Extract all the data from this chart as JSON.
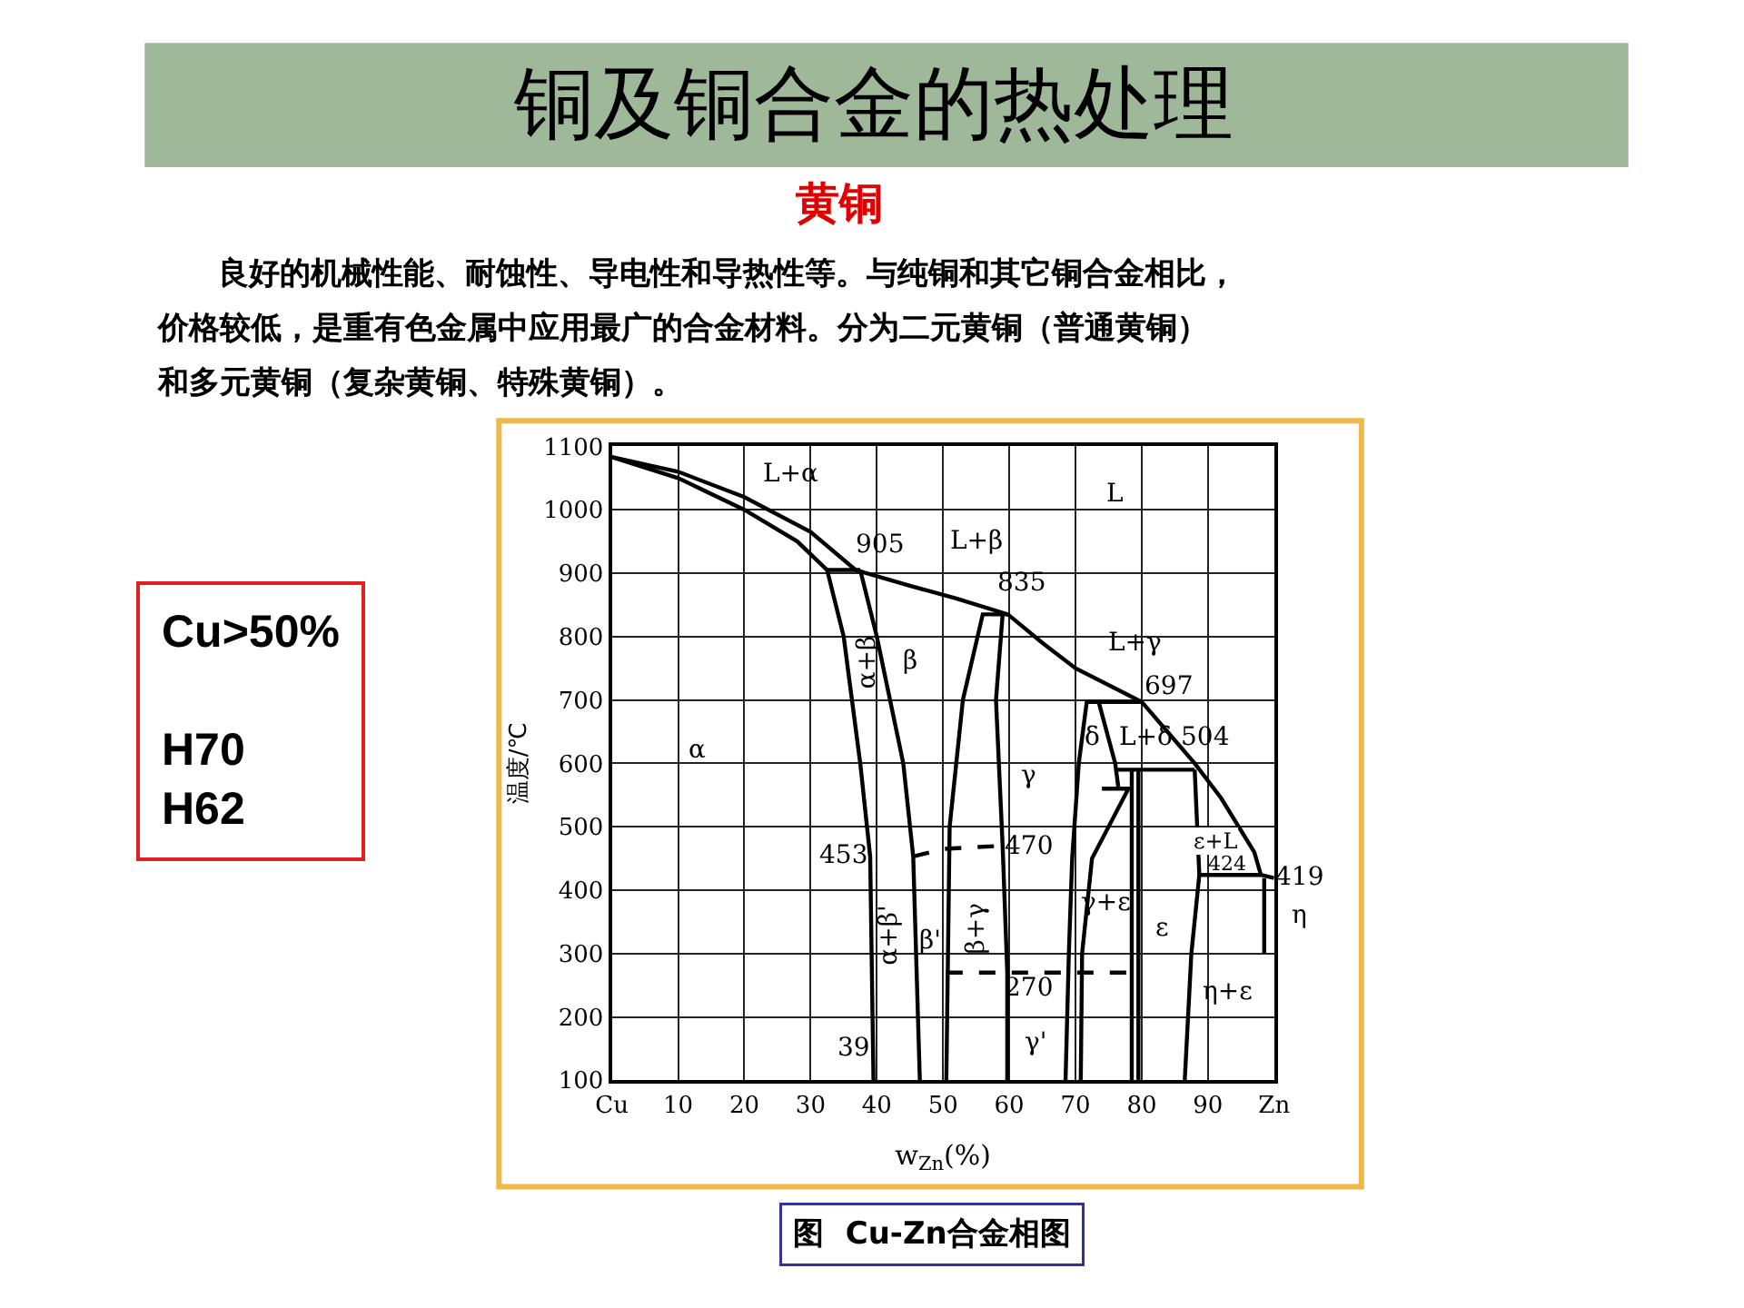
{
  "chart_data": {
    "type": "line",
    "title": "铜及铜合金的热处理",
    "subtitle": "黄铜",
    "xlabel": "w$_{Zn}$(%)",
    "ylabel": "温度/℃",
    "xlim": [
      0,
      100
    ],
    "ylim": [
      100,
      1100
    ],
    "xticks": [
      {
        "value": 0,
        "label": "Cu"
      },
      10,
      20,
      30,
      40,
      50,
      60,
      70,
      80,
      90,
      {
        "value": 100,
        "label": "Zn"
      }
    ],
    "yticks": [
      100,
      200,
      300,
      400,
      500,
      600,
      700,
      800,
      900,
      1000,
      1100
    ],
    "grid": true,
    "marker": "none",
    "line_style": "solid",
    "series": [
      {
        "color": "#000000",
        "x": [
          0,
          10,
          20,
          30,
          36.8,
          45,
          52,
          59.8,
          65,
          70,
          80,
          88,
          92,
          97,
          98,
          100
        ],
        "values": [
          1083,
          1060,
          1020,
          965,
          905,
          880,
          860,
          835,
          790,
          750,
          697,
          600,
          545,
          460,
          424,
          419
        ]
      },
      {
        "color": "#000000",
        "x": [
          0,
          10,
          20,
          28,
          32.5,
          37.5
        ],
        "values": [
          1083,
          1050,
          1000,
          950,
          905,
          905
        ]
      },
      {
        "color": "#000000",
        "x": [
          32.5,
          35,
          37.5,
          39,
          39.5
        ],
        "values": [
          905,
          800,
          600,
          453,
          100
        ]
      },
      {
        "color": "#000000",
        "x": [
          37.5,
          40,
          44,
          45.5,
          46.5
        ],
        "values": [
          905,
          800,
          600,
          453,
          100
        ]
      },
      {
        "color": "#000000",
        "x": [
          59.8,
          56,
          53,
          51,
          50.5
        ],
        "values": [
          835,
          835,
          700,
          500,
          100
        ]
      },
      {
        "color": "#000000",
        "x": [
          59,
          58,
          59,
          59.7,
          59.7
        ],
        "values": [
          835,
          700,
          470,
          270,
          100
        ]
      },
      {
        "color": "#000000",
        "x": [
          80,
          71.7,
          70.5,
          69.5,
          69,
          68.5
        ],
        "values": [
          697,
          697,
          600,
          450,
          300,
          100
        ]
      },
      {
        "color": "#000000",
        "x": [
          73.5,
          76,
          76.5
        ],
        "values": [
          697,
          600,
          560
        ]
      },
      {
        "color": "#000000",
        "x": [
          74,
          78,
          72.5,
          71,
          70.8
        ],
        "values": [
          560,
          560,
          450,
          300,
          100
        ]
      },
      {
        "color": "#000000",
        "x": [
          76,
          88
        ],
        "values": [
          590,
          590
        ]
      },
      {
        "color": "#000000",
        "x": [
          78.5,
          78.5
        ],
        "values": [
          590,
          100
        ]
      },
      {
        "color": "#000000",
        "x": [
          79.5,
          79.5
        ],
        "values": [
          590,
          100
        ]
      },
      {
        "color": "#000000",
        "x": [
          88,
          88.7,
          87.5,
          86.5
        ],
        "values": [
          590,
          424,
          300,
          100
        ]
      },
      {
        "color": "#000000",
        "x": [
          88.7,
          98
        ],
        "values": [
          424,
          424
        ]
      },
      {
        "color": "#000000",
        "x": [
          98.5,
          98.5
        ],
        "values": [
          419,
          300
        ]
      },
      {
        "color": "#000000",
        "line_style": "dashed",
        "x": [
          45.5,
          50,
          59
        ],
        "values": [
          453,
          465,
          470
        ]
      },
      {
        "color": "#000000",
        "line_style": "dashed",
        "x": [
          50.5,
          80
        ],
        "values": [
          270,
          270
        ]
      }
    ],
    "annotations": [
      "　　良好的机械性能、耐蚀性、导电性和导热性等。与纯铜和其它铜合金相比，",
      "价格较低，是重有色金属中应用最广的合金材料。分为二元黄铜（普通黄铜）",
      "和多元黄铜（复杂黄铜、特殊黄铜）。",
      "Cu>50%\n\nH70\nH62",
      "图  Cu-Zn合金相图",
      "L+α",
      "905",
      "L+β",
      "L",
      "835",
      "L+γ",
      "697",
      "δ",
      "L+δ",
      "504",
      "ε+L",
      "424",
      "419",
      "η",
      "α",
      "α+β",
      "β",
      "γ",
      "453",
      "470",
      "α+β'",
      "β'",
      "β+γ",
      "γ+ε",
      "ε",
      "270",
      "γ'",
      "η+ε",
      "39"
    ]
  }
}
